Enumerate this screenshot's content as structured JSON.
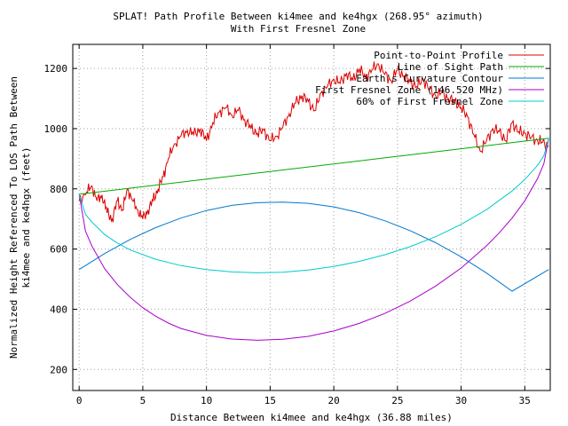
{
  "chart_data": {
    "type": "line",
    "title_line1": "SPLAT! Path Profile Between ki4mee and ke4hgx (268.95° azimuth)",
    "title_line2": "With First Fresnel Zone",
    "xlabel": "Distance Between ki4mee and ke4hgx (36.88 miles)",
    "ylabel_line1": "Normalized Height Referenced To LOS Path Between",
    "ylabel_line2": "ki4mee and ke4hgx (feet)",
    "xlim": [
      -0.5,
      37.0
    ],
    "ylim": [
      130,
      1280
    ],
    "x_ticks": [
      0,
      5,
      10,
      15,
      20,
      25,
      30,
      35
    ],
    "y_ticks": [
      200,
      400,
      600,
      800,
      1000,
      1200
    ],
    "grid": true,
    "legend_position": "top-right",
    "series": [
      {
        "name": "Point-to-Point Profile",
        "color": "#dd0000",
        "x": [
          0,
          0.6,
          1.0,
          1.4,
          1.8,
          2.2,
          2.6,
          3.0,
          3.4,
          3.8,
          4.2,
          4.6,
          5.0,
          5.4,
          5.8,
          6.2,
          6.6,
          7.0,
          7.5,
          8.0,
          8.5,
          9.0,
          9.5,
          10.0,
          10.5,
          11.0,
          11.5,
          12.0,
          12.5,
          13.0,
          13.5,
          14.0,
          14.5,
          15.0,
          15.5,
          16.0,
          16.5,
          17.0,
          17.5,
          18.0,
          18.5,
          19.0,
          19.5,
          20.0,
          20.5,
          21.0,
          21.5,
          22.0,
          22.5,
          23.0,
          23.5,
          24.0,
          24.5,
          25.0,
          25.5,
          26.0,
          26.5,
          27.0,
          27.5,
          28.0,
          28.5,
          29.0,
          29.5,
          30.0,
          30.5,
          31.0,
          31.5,
          32.0,
          32.5,
          33.0,
          33.5,
          34.0,
          34.5,
          35.0,
          35.5,
          36.0,
          36.4,
          36.88
        ],
        "values": [
          760,
          790,
          810,
          760,
          780,
          720,
          700,
          760,
          730,
          800,
          760,
          730,
          700,
          730,
          760,
          800,
          840,
          900,
          950,
          975,
          995,
          980,
          1000,
          960,
          1020,
          1055,
          1070,
          1045,
          1060,
          1030,
          1000,
          985,
          995,
          960,
          975,
          1005,
          1050,
          1085,
          1110,
          1090,
          1060,
          1120,
          1140,
          1165,
          1150,
          1185,
          1160,
          1200,
          1170,
          1195,
          1215,
          1180,
          1160,
          1195,
          1175,
          1155,
          1140,
          1165,
          1130,
          1110,
          1120,
          1100,
          1090,
          1070,
          1040,
          980,
          925,
          960,
          1000,
          990,
          960,
          1020,
          990,
          985,
          970,
          960,
          955,
          940
        ]
      },
      {
        "name": "Line of Sight Path",
        "color": "#00aa00",
        "x": [
          0,
          36.88
        ],
        "values": [
          782,
          968
        ]
      },
      {
        "name": "Earth's Curvature Contour",
        "color": "#0077cc",
        "x": [
          0,
          2,
          4,
          6,
          8,
          10,
          12,
          14,
          16,
          18,
          20,
          22,
          24,
          26,
          28,
          30,
          32,
          34,
          36.88
        ],
        "values": [
          532,
          585,
          632,
          671,
          703,
          728,
          745,
          754,
          756,
          752,
          740,
          721,
          694,
          661,
          621,
          574,
          520,
          460,
          532
        ]
      },
      {
        "name": "First Fresnel Zone (146.520 MHz)",
        "color": "#aa00cc",
        "x": [
          0,
          0.5,
          1,
          2,
          3,
          4,
          5,
          6,
          7,
          8,
          10,
          12,
          14,
          16,
          18,
          20,
          22,
          24,
          26,
          28,
          30,
          32,
          33,
          34,
          35,
          36,
          36.5,
          36.88
        ],
        "values": [
          782,
          660,
          610,
          535,
          482,
          440,
          405,
          377,
          354,
          336,
          313,
          301,
          297,
          300,
          310,
          328,
          353,
          386,
          427,
          477,
          537,
          611,
          654,
          703,
          760,
          834,
          884,
          968
        ]
      },
      {
        "name": "60% of First Fresnel Zone",
        "color": "#00cccc",
        "x": [
          0,
          0.5,
          1,
          2,
          3,
          4,
          6,
          8,
          10,
          12,
          14,
          16,
          18,
          20,
          22,
          24,
          26,
          28,
          30,
          32,
          34,
          35,
          36,
          36.5,
          36.88
        ],
        "values": [
          782,
          715,
          690,
          648,
          620,
          597,
          566,
          545,
          532,
          524,
          521,
          523,
          530,
          542,
          559,
          581,
          608,
          641,
          682,
          731,
          793,
          831,
          878,
          910,
          968
        ]
      }
    ]
  }
}
